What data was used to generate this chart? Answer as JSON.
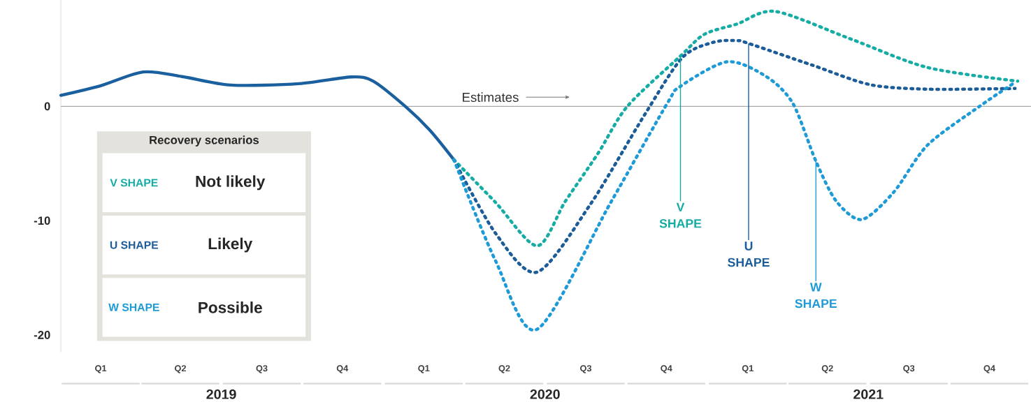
{
  "chart_data": {
    "type": "line",
    "legend_title": "Recovery scenarios",
    "legend": "bottom left",
    "line_style": "dotted",
    "marker": "none",
    "xlim": [
      "2019-01-01",
      "2022-01-01"
    ],
    "ylim": [
      -21.5,
      9.3
    ],
    "xticks": [
      {
        "value": "2019-02-15",
        "label": "Q1"
      },
      {
        "value": "2019-05-16",
        "label": "Q2"
      },
      {
        "value": "2019-08-16",
        "label": "Q3"
      },
      {
        "value": "2019-11-15",
        "label": "Q4"
      },
      {
        "value": "2020-02-15",
        "label": "Q1"
      },
      {
        "value": "2020-05-16",
        "label": "Q2"
      },
      {
        "value": "2020-08-16",
        "label": "Q3"
      },
      {
        "value": "2020-11-15",
        "label": "Q4"
      },
      {
        "value": "2021-02-15",
        "label": "Q1"
      },
      {
        "value": "2021-05-16",
        "label": "Q2"
      },
      {
        "value": "2021-08-16",
        "label": "Q3"
      },
      {
        "value": "2021-11-15",
        "label": "Q4"
      }
    ],
    "yticks": [
      0,
      -10,
      -20
    ],
    "ref_lines": [
      {
        "axis": "y",
        "value": 0,
        "color": "#a6a6a6"
      }
    ],
    "series": [
      {
        "color": "#1a5f9e",
        "line_style": "solid",
        "x": [
          "2019-01-01",
          "2019-02-15",
          "2019-04-04",
          "2019-05-18",
          "2019-07-12",
          "2019-09-27",
          "2019-11-25",
          "2019-12-20",
          "2020-01-26",
          "2020-02-22",
          "2020-03-20"
        ],
        "values": [
          0.96,
          1.8,
          3.0,
          2.6,
          1.86,
          1.98,
          2.57,
          2.2,
          -0.06,
          -2.1,
          -4.67
        ]
      },
      {
        "name": "V SHAPE",
        "color": "#14aca4",
        "x": [
          "2020-03-20",
          "2020-05-06",
          "2020-06-22",
          "2020-07-24",
          "2020-08-30",
          "2020-10-02",
          "2020-12-01",
          "2020-12-28",
          "2021-02-03",
          "2021-03-18",
          "2021-06-11",
          "2021-09-06",
          "2021-12-17"
        ],
        "values": [
          -4.67,
          -8.4,
          -12.2,
          -8.3,
          -4.1,
          0,
          4.4,
          6.3,
          7.2,
          8.3,
          5.9,
          3.4,
          2.2
        ]
      },
      {
        "name": "U SHAPE",
        "color": "#1c5d99",
        "x": [
          "2020-03-20",
          "2020-05-06",
          "2020-06-22",
          "2020-08-21",
          "2020-10-21",
          "2020-12-03",
          "2021-01-07",
          "2021-02-03",
          "2021-02-16",
          "2021-04-29",
          "2021-07-03",
          "2021-09-06",
          "2021-12-14"
        ],
        "values": [
          -4.67,
          -11.1,
          -14.5,
          -8.6,
          -0.8,
          4.25,
          5.6,
          5.75,
          5.5,
          3.6,
          1.9,
          1.5,
          1.56
        ]
      },
      {
        "name": "W SHAPE",
        "color": "#1e9bd7",
        "x": [
          "2020-03-20",
          "2020-05-06",
          "2020-06-22",
          "2020-09-14",
          "2020-11-16",
          "2020-12-01",
          "2021-01-23",
          "2021-03-08",
          "2021-04-07",
          "2021-05-03",
          "2021-05-26",
          "2021-06-24",
          "2021-07-30",
          "2021-09-06",
          "2021-11-05",
          "2021-12-14"
        ],
        "values": [
          -4.67,
          -13.5,
          -19.5,
          -8.3,
          0.25,
          1.75,
          3.9,
          2.6,
          0.25,
          -4.8,
          -8.3,
          -9.9,
          -7.5,
          -3.4,
          0.06,
          2.1
        ]
      }
    ],
    "annotations": [
      {
        "text": "Estimates",
        "x": "2020-03-27",
        "y": 0
      },
      {
        "text": "V SHAPE",
        "x": "2020-12-01",
        "y": 4.4
      },
      {
        "text": "U SHAPE",
        "x": "2021-02-16",
        "y": 5.5
      },
      {
        "text": "W SHAPE",
        "x": "2021-05-03",
        "y": -4.8
      },
      "2019",
      "2020",
      "2021",
      "Not likely",
      "Likely",
      "Possible"
    ]
  }
}
